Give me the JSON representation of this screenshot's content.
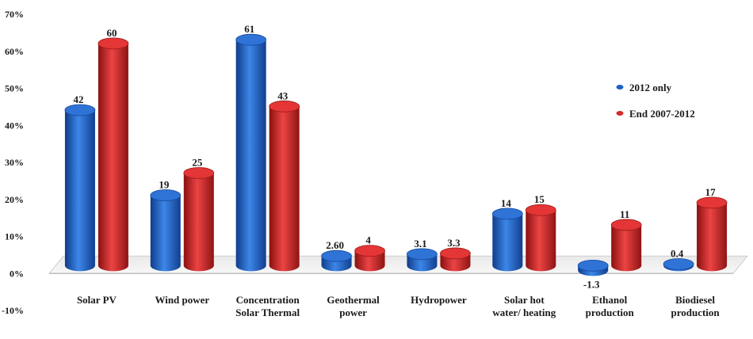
{
  "chart_data": {
    "type": "bar",
    "title": "",
    "xlabel": "",
    "ylabel": "",
    "ylim": [
      -10,
      70
    ],
    "y_tick_labels": [
      "70%",
      "60%",
      "50%",
      "40%",
      "30%",
      "20%",
      "10%",
      "0%",
      "-10%"
    ],
    "y_ticks": [
      70,
      60,
      50,
      40,
      30,
      20,
      10,
      0,
      -10
    ],
    "grid": false,
    "legend_position": "right",
    "categories": [
      "Solar PV",
      "Wind power",
      "Concentration Solar Thermal",
      "Geothermal power",
      "Hydropower",
      "Solar hot water/ heating",
      "Ethanol production",
      "Biodiesel production"
    ],
    "category_lines": [
      [
        "Solar PV"
      ],
      [
        "Wind power"
      ],
      [
        "Concentration",
        "Solar Thermal"
      ],
      [
        "Geothermal",
        "power"
      ],
      [
        "Hydropower"
      ],
      [
        "Solar hot",
        "water/ heating"
      ],
      [
        "Ethanol",
        "production"
      ],
      [
        "Biodiesel",
        "production"
      ]
    ],
    "series": [
      {
        "name": "2012 only",
        "color": "#1f5fc4",
        "values": [
          42,
          19,
          61,
          2.6,
          3.1,
          14,
          -1.3,
          0.4
        ],
        "labels": [
          "42",
          "19",
          "61",
          "2.60",
          "3.1",
          "14",
          "-1.3",
          "0.4"
        ]
      },
      {
        "name": "End 2007-2012",
        "color": "#d42a2a",
        "values": [
          60,
          25,
          43,
          4,
          3.3,
          15,
          11,
          17
        ],
        "labels": [
          "60",
          "25",
          "43",
          "4",
          "3.3",
          "15",
          "11",
          "17"
        ]
      }
    ]
  }
}
